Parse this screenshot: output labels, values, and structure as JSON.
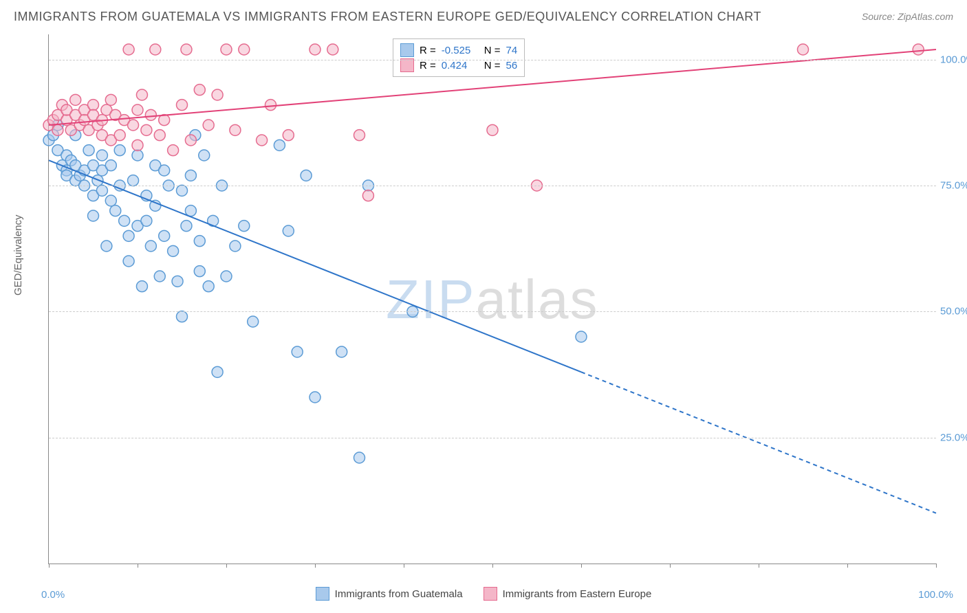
{
  "title": "IMMIGRANTS FROM GUATEMALA VS IMMIGRANTS FROM EASTERN EUROPE GED/EQUIVALENCY CORRELATION CHART",
  "source": "Source: ZipAtlas.com",
  "y_axis_label": "GED/Equivalency",
  "chart": {
    "type": "scatter",
    "xlim": [
      0,
      100
    ],
    "ylim": [
      0,
      105
    ],
    "x_ticks": [
      0,
      10,
      20,
      30,
      40,
      50,
      60,
      70,
      80,
      90,
      100
    ],
    "y_gridlines": [
      25,
      50,
      75,
      100
    ],
    "y_tick_labels": [
      "25.0%",
      "50.0%",
      "75.0%",
      "100.0%"
    ],
    "x_axis_start_label": "0.0%",
    "x_axis_end_label": "100.0%",
    "background_color": "#ffffff",
    "grid_color": "#cccccc",
    "axis_color": "#888888",
    "marker_radius": 8,
    "marker_stroke_width": 1.5,
    "line_width": 2,
    "series": [
      {
        "name": "Immigrants from Guatemala",
        "id": "guatemala",
        "fill_color": "#a8c9ec",
        "stroke_color": "#5b9bd5",
        "fill_opacity": 0.55,
        "line_color": "#2e75c9",
        "r_value": -0.525,
        "n_value": 74,
        "trend": {
          "x1": 0,
          "y1": 80,
          "x2_solid": 60,
          "y2_solid": 38,
          "x2_dash": 100,
          "y2_dash": 10
        },
        "points": [
          [
            0,
            84
          ],
          [
            0.5,
            85
          ],
          [
            1,
            87
          ],
          [
            1,
            82
          ],
          [
            1.5,
            79
          ],
          [
            2,
            81
          ],
          [
            2,
            78
          ],
          [
            2,
            77
          ],
          [
            2.5,
            80
          ],
          [
            3,
            85
          ],
          [
            3,
            79
          ],
          [
            3,
            76
          ],
          [
            3.5,
            77
          ],
          [
            4,
            75
          ],
          [
            4,
            78
          ],
          [
            4.5,
            82
          ],
          [
            5,
            79
          ],
          [
            5,
            73
          ],
          [
            5,
            69
          ],
          [
            5.5,
            76
          ],
          [
            6,
            78
          ],
          [
            6,
            74
          ],
          [
            6,
            81
          ],
          [
            6.5,
            63
          ],
          [
            7,
            79
          ],
          [
            7,
            72
          ],
          [
            7.5,
            70
          ],
          [
            8,
            82
          ],
          [
            8,
            75
          ],
          [
            8.5,
            68
          ],
          [
            9,
            65
          ],
          [
            9,
            60
          ],
          [
            9.5,
            76
          ],
          [
            10,
            81
          ],
          [
            10,
            67
          ],
          [
            10.5,
            55
          ],
          [
            11,
            73
          ],
          [
            11,
            68
          ],
          [
            11.5,
            63
          ],
          [
            12,
            79
          ],
          [
            12,
            71
          ],
          [
            12.5,
            57
          ],
          [
            13,
            65
          ],
          [
            13,
            78
          ],
          [
            13.5,
            75
          ],
          [
            14,
            62
          ],
          [
            14.5,
            56
          ],
          [
            15,
            74
          ],
          [
            15,
            49
          ],
          [
            15.5,
            67
          ],
          [
            16,
            70
          ],
          [
            16,
            77
          ],
          [
            16.5,
            85
          ],
          [
            17,
            64
          ],
          [
            17,
            58
          ],
          [
            17.5,
            81
          ],
          [
            18,
            55
          ],
          [
            18.5,
            68
          ],
          [
            19,
            38
          ],
          [
            19.5,
            75
          ],
          [
            20,
            57
          ],
          [
            21,
            63
          ],
          [
            22,
            67
          ],
          [
            23,
            48
          ],
          [
            26,
            83
          ],
          [
            27,
            66
          ],
          [
            28,
            42
          ],
          [
            29,
            77
          ],
          [
            30,
            33
          ],
          [
            33,
            42
          ],
          [
            35,
            21
          ],
          [
            36,
            75
          ],
          [
            41,
            50
          ],
          [
            60,
            45
          ]
        ]
      },
      {
        "name": "Immigrants from Eastern Europe",
        "id": "eastern-europe",
        "fill_color": "#f4b6c8",
        "stroke_color": "#e56b8f",
        "fill_opacity": 0.55,
        "line_color": "#e24177",
        "r_value": 0.424,
        "n_value": 56,
        "trend": {
          "x1": 0,
          "y1": 87,
          "x2_solid": 100,
          "y2_solid": 102,
          "x2_dash": 100,
          "y2_dash": 102
        },
        "points": [
          [
            0,
            87
          ],
          [
            0.5,
            88
          ],
          [
            1,
            89
          ],
          [
            1,
            86
          ],
          [
            1.5,
            91
          ],
          [
            2,
            88
          ],
          [
            2,
            90
          ],
          [
            2.5,
            86
          ],
          [
            3,
            89
          ],
          [
            3,
            92
          ],
          [
            3.5,
            87
          ],
          [
            4,
            90
          ],
          [
            4,
            88
          ],
          [
            4.5,
            86
          ],
          [
            5,
            91
          ],
          [
            5,
            89
          ],
          [
            5.5,
            87
          ],
          [
            6,
            88
          ],
          [
            6,
            85
          ],
          [
            6.5,
            90
          ],
          [
            7,
            84
          ],
          [
            7,
            92
          ],
          [
            7.5,
            89
          ],
          [
            8,
            85
          ],
          [
            8.5,
            88
          ],
          [
            9,
            102
          ],
          [
            9.5,
            87
          ],
          [
            10,
            90
          ],
          [
            10,
            83
          ],
          [
            10.5,
            93
          ],
          [
            11,
            86
          ],
          [
            11.5,
            89
          ],
          [
            12,
            102
          ],
          [
            12.5,
            85
          ],
          [
            13,
            88
          ],
          [
            14,
            82
          ],
          [
            15,
            91
          ],
          [
            15.5,
            102
          ],
          [
            16,
            84
          ],
          [
            17,
            94
          ],
          [
            18,
            87
          ],
          [
            19,
            93
          ],
          [
            20,
            102
          ],
          [
            21,
            86
          ],
          [
            22,
            102
          ],
          [
            24,
            84
          ],
          [
            25,
            91
          ],
          [
            27,
            85
          ],
          [
            30,
            102
          ],
          [
            32,
            102
          ],
          [
            35,
            85
          ],
          [
            36,
            73
          ],
          [
            50,
            86
          ],
          [
            55,
            75
          ],
          [
            85,
            102
          ],
          [
            98,
            102
          ]
        ]
      }
    ]
  },
  "stats_legend": {
    "r_label": "R =",
    "n_label": "N =",
    "border_color": "#bbbbbb",
    "text_color": "#444444",
    "value_color": "#2e75c9"
  },
  "bottom_legend": {
    "items": [
      {
        "label": "Immigrants from Guatemala",
        "fill": "#a8c9ec",
        "stroke": "#5b9bd5"
      },
      {
        "label": "Immigrants from Eastern Europe",
        "fill": "#f4b6c8",
        "stroke": "#e56b8f"
      }
    ]
  },
  "watermark": {
    "text_zip": "ZIP",
    "text_atlas": "atlas",
    "color_zip": "#c9dcf0",
    "color_atlas": "#dddddd"
  },
  "colors": {
    "title_color": "#555555",
    "source_color": "#888888",
    "y_tick_blue": "#5b9bd5",
    "x_label_blue": "#5b9bd5"
  }
}
